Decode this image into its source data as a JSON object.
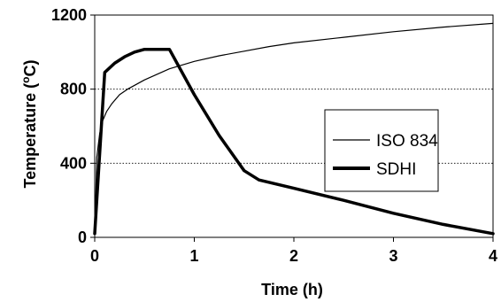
{
  "chart_data": {
    "type": "line",
    "xlabel": "Time (h)",
    "ylabel": "Temperature (°C)",
    "ylabel_main": "Temperature (",
    "ylabel_sup": "o",
    "ylabel_end": "C)",
    "xlim": [
      0,
      4
    ],
    "ylim": [
      0,
      1200
    ],
    "x_ticks": [
      "0",
      "1",
      "2",
      "3",
      "4"
    ],
    "y_ticks": [
      "0",
      "400",
      "800",
      "1200"
    ],
    "grid": "horizontal dotted at 400 and 800",
    "legend_position": "center-right",
    "series": [
      {
        "name": "ISO 834",
        "style": "thin",
        "x": [
          0,
          0.02,
          0.05,
          0.08,
          0.12,
          0.17,
          0.25,
          0.33,
          0.5,
          0.75,
          1.0,
          1.25,
          1.5,
          1.75,
          2.0,
          2.5,
          3.0,
          3.5,
          4.0
        ],
        "y": [
          20,
          430,
          560,
          630,
          680,
          720,
          770,
          800,
          850,
          910,
          950,
          980,
          1005,
          1030,
          1050,
          1080,
          1110,
          1135,
          1155
        ]
      },
      {
        "name": "SDHI",
        "style": "thick",
        "x": [
          0,
          0.1,
          0.2,
          0.3,
          0.4,
          0.5,
          0.6,
          0.75,
          1.0,
          1.25,
          1.5,
          1.65,
          2.0,
          2.5,
          3.0,
          3.5,
          4.0
        ],
        "y": [
          20,
          890,
          940,
          975,
          1000,
          1015,
          1015,
          1015,
          770,
          550,
          360,
          310,
          265,
          200,
          130,
          70,
          20
        ]
      }
    ]
  }
}
